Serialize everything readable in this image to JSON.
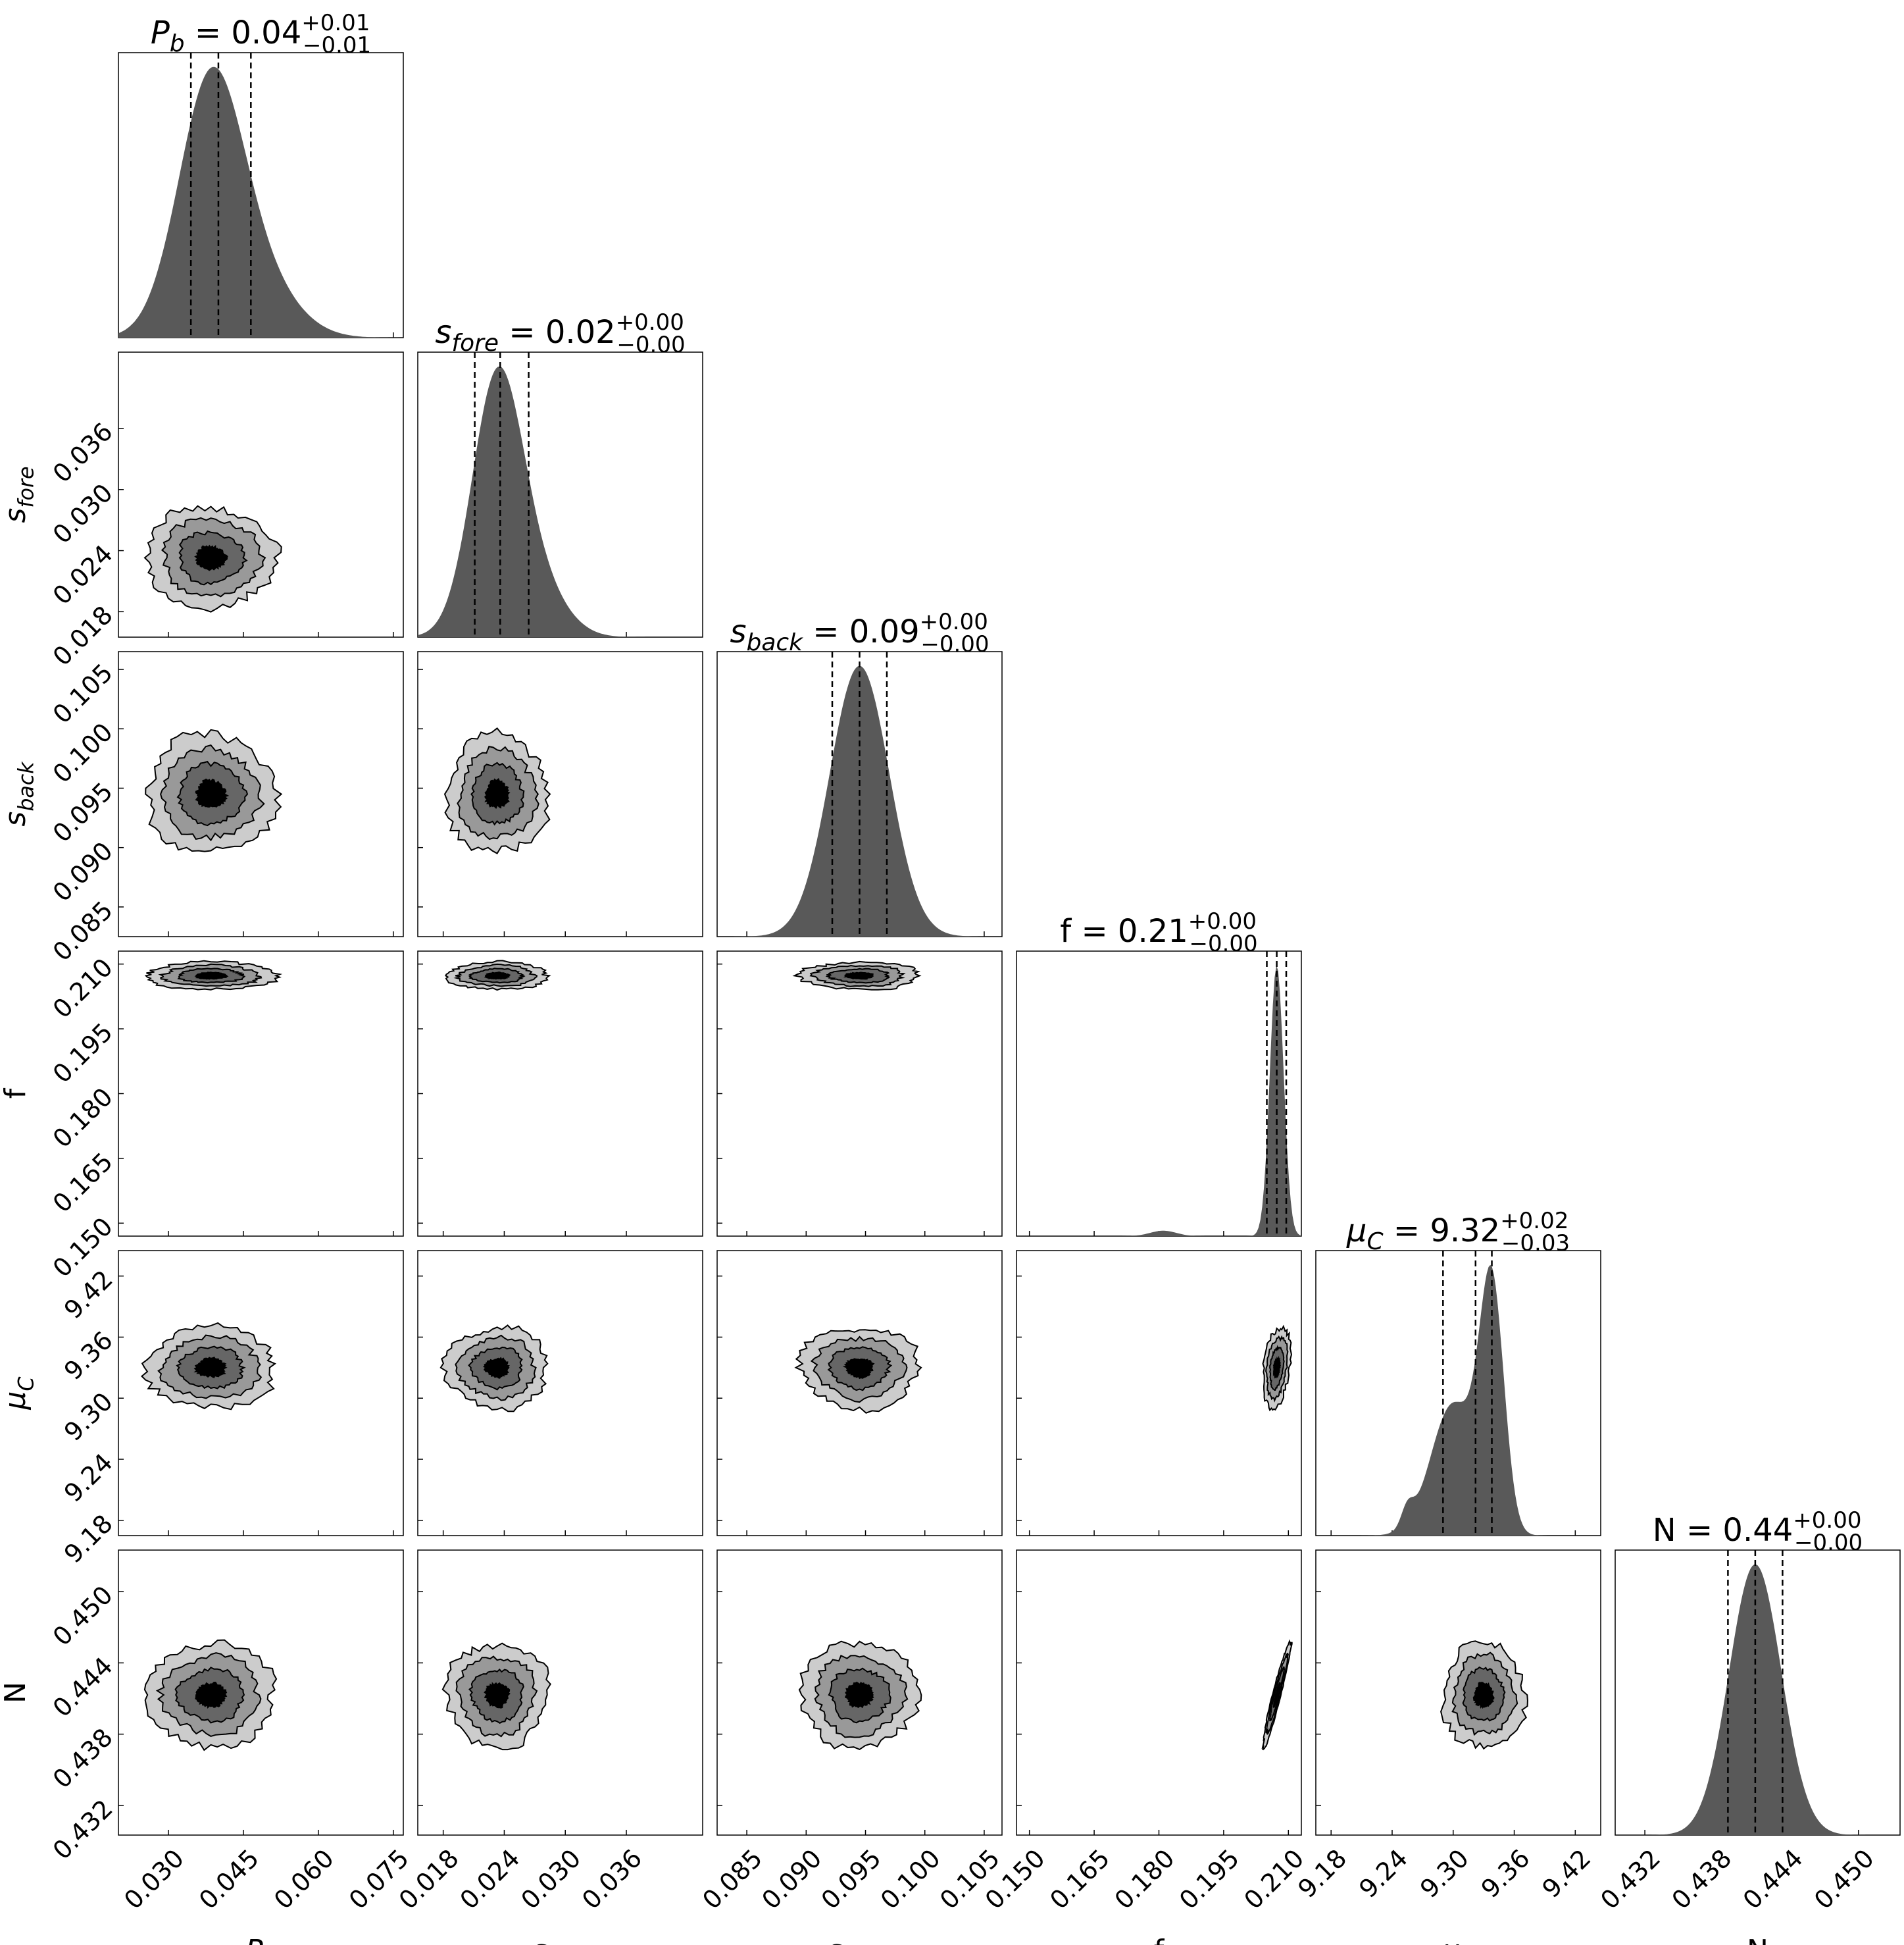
{
  "chart_data": {
    "type": "corner",
    "parameters": [
      {
        "key": "Pb",
        "label": {
          "sym": "P",
          "sub": "b",
          "italic": true
        },
        "range": [
          0.02,
          0.077
        ],
        "ticks": [
          "0.030",
          "0.045",
          "0.060",
          "0.075"
        ],
        "tick_values": [
          0.03,
          0.045,
          0.06,
          0.075
        ],
        "title": {
          "main": "= 0.04",
          "sup": "+0.01",
          "sub": "−0.01"
        },
        "quantiles": [
          0.0345,
          0.04,
          0.0465
        ],
        "median": 0.0385,
        "sigma": 0.0065,
        "shape": "normal"
      },
      {
        "key": "sfore",
        "label": {
          "sym": "s",
          "sub": "fore",
          "italic": true
        },
        "range": [
          0.0155,
          0.0435
        ],
        "ticks": [
          "0.018",
          "0.024",
          "0.030",
          "0.036"
        ],
        "tick_values": [
          0.018,
          0.024,
          0.03,
          0.036
        ],
        "title": {
          "main": "= 0.02",
          "sup": "+0.00",
          "sub": "−0.00"
        },
        "quantiles": [
          0.0211,
          0.0236,
          0.0264
        ],
        "median": 0.0233,
        "sigma": 0.0025,
        "shape": "normal"
      },
      {
        "key": "sback",
        "label": {
          "sym": "s",
          "sub": "back",
          "italic": true
        },
        "range": [
          0.0825,
          0.1065
        ],
        "ticks": [
          "0.085",
          "0.090",
          "0.095",
          "0.100",
          "0.105"
        ],
        "tick_values": [
          0.085,
          0.09,
          0.095,
          0.1,
          0.105
        ],
        "title": {
          "main": "= 0.09",
          "sup": "+0.00",
          "sub": "−0.00"
        },
        "quantiles": [
          0.0922,
          0.0945,
          0.0968
        ],
        "median": 0.0945,
        "sigma": 0.0025,
        "shape": "normal"
      },
      {
        "key": "f",
        "label": {
          "sym": "f",
          "sub": "",
          "italic": false
        },
        "range": [
          0.147,
          0.213
        ],
        "ticks": [
          "0.150",
          "0.165",
          "0.180",
          "0.195",
          "0.210"
        ],
        "tick_values": [
          0.15,
          0.165,
          0.18,
          0.195,
          0.21
        ],
        "title": {
          "main": "f = 0.21",
          "sup": "+0.00",
          "sub": "−0.00"
        },
        "quantiles": [
          0.205,
          0.2073,
          0.2095
        ],
        "median": 0.2073,
        "sigma": 0.0016,
        "shape": "normal"
      },
      {
        "key": "muC",
        "label": {
          "sym": "μ",
          "sub": "C",
          "italic": true
        },
        "range": [
          9.165,
          9.445
        ],
        "ticks": [
          "9.18",
          "9.24",
          "9.30",
          "9.36",
          "9.42"
        ],
        "tick_values": [
          9.18,
          9.24,
          9.3,
          9.36,
          9.42
        ],
        "title": {
          "main": "= 9.32",
          "sup": "+0.02",
          "sub": "−0.03"
        },
        "quantiles": [
          9.29,
          9.322,
          9.338
        ],
        "median": 9.33,
        "sigma": 0.02,
        "shape": "skewed"
      },
      {
        "key": "N",
        "label": {
          "sym": "N",
          "sub": "",
          "italic": false
        },
        "range": [
          0.4295,
          0.4535
        ],
        "ticks": [
          "0.432",
          "0.438",
          "0.444",
          "0.450"
        ],
        "tick_values": [
          0.432,
          0.438,
          0.444,
          0.45
        ],
        "title": {
          "main": "N = 0.44",
          "sup": "+0.00",
          "sub": "−0.00"
        },
        "quantiles": [
          0.439,
          0.4413,
          0.4436
        ],
        "median": 0.4413,
        "sigma": 0.0022,
        "shape": "normal"
      }
    ],
    "fill_color": "#595959",
    "contour_fills": [
      "#cccccc",
      "#999999",
      "#666666",
      "#000000"
    ],
    "correlations": {
      "f-N": 0.95,
      "f-muC": 0.3
    }
  }
}
